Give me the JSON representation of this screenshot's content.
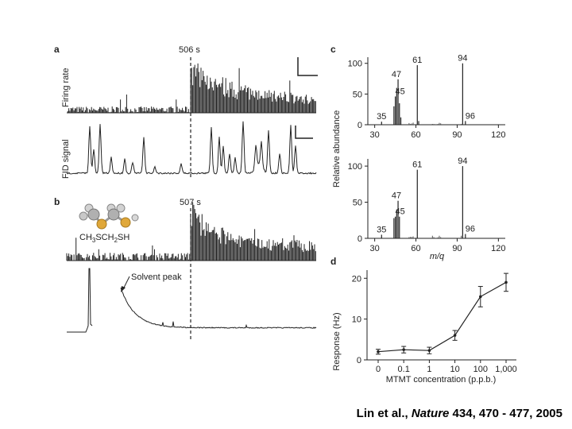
{
  "panels": {
    "a": {
      "label": "a",
      "marker": "506 s",
      "row1_label": "Firing rate",
      "row2_label": "FID signal"
    },
    "b": {
      "label": "b",
      "marker": "507 s",
      "molecule_formula": "CH3SCH2SH",
      "annotation": "Solvent peak"
    },
    "c": {
      "label": "c"
    },
    "d": {
      "label": "d"
    }
  },
  "citation": {
    "authors": "Lin et al.,",
    "journal": "Nature",
    "rest": "434, 470 - 477, 2005"
  },
  "chart_data": [
    {
      "type": "bar",
      "panel": "c",
      "subplot": "top",
      "ylabel": "Relative abundance",
      "xlabel": "",
      "xlim": [
        25,
        125
      ],
      "ylim": [
        0,
        110
      ],
      "xticks": [
        30,
        60,
        90,
        120
      ],
      "yticks": [
        0,
        50,
        100
      ],
      "peaks": [
        {
          "mz": 35,
          "value": 5,
          "label": "35"
        },
        {
          "mz": 44,
          "value": 30
        },
        {
          "mz": 45,
          "value": 46,
          "label": "45"
        },
        {
          "mz": 46,
          "value": 60
        },
        {
          "mz": 47,
          "value": 74,
          "label": "47"
        },
        {
          "mz": 48,
          "value": 35
        },
        {
          "mz": 49,
          "value": 12
        },
        {
          "mz": 61,
          "value": 97,
          "label": "61"
        },
        {
          "mz": 62,
          "value": 6
        },
        {
          "mz": 94,
          "value": 100,
          "label": "94"
        },
        {
          "mz": 96,
          "value": 6,
          "label": "96"
        }
      ]
    },
    {
      "type": "bar",
      "panel": "c",
      "subplot": "bottom",
      "ylabel": "",
      "xlabel": "m/q",
      "xlim": [
        25,
        125
      ],
      "ylim": [
        0,
        110
      ],
      "xticks": [
        30,
        60,
        90,
        120
      ],
      "yticks": [
        0,
        50,
        100
      ],
      "peaks": [
        {
          "mz": 35,
          "value": 5,
          "label": "35"
        },
        {
          "mz": 44,
          "value": 28
        },
        {
          "mz": 45,
          "value": 30,
          "label": "45"
        },
        {
          "mz": 46,
          "value": 40
        },
        {
          "mz": 47,
          "value": 52,
          "label": "47"
        },
        {
          "mz": 48,
          "value": 30
        },
        {
          "mz": 61,
          "value": 95,
          "label": "61"
        },
        {
          "mz": 94,
          "value": 100,
          "label": "94"
        },
        {
          "mz": 96,
          "value": 6,
          "label": "96"
        }
      ]
    },
    {
      "type": "line",
      "panel": "d",
      "ylabel": "Response (Hz)",
      "xlabel": "MTMT concentration (p.p.b.)",
      "categories": [
        "0",
        "0.1",
        "1",
        "10",
        "100",
        "1,000"
      ],
      "ylim": [
        0,
        22
      ],
      "yticks": [
        0,
        10,
        20
      ],
      "values": [
        2,
        2.5,
        2.3,
        6,
        15.5,
        19
      ],
      "errors": [
        0.6,
        0.8,
        0.8,
        1.2,
        2.5,
        2.2
      ]
    }
  ]
}
